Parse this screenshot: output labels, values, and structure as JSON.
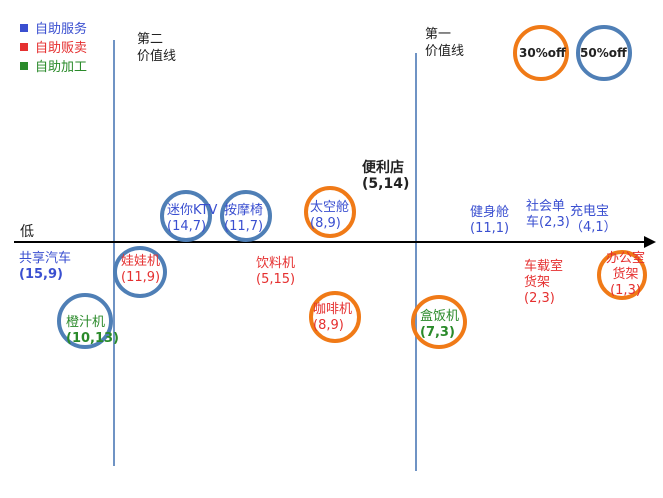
{
  "legend": [
    {
      "label": "自助服务",
      "color": "#3a4fd0"
    },
    {
      "label": "自助贩卖",
      "color": "#e53030"
    },
    {
      "label": "自助加工",
      "color": "#2a8a2a"
    }
  ],
  "value_lines": {
    "second": {
      "line1": "第二",
      "line2": "价值线"
    },
    "first": {
      "line1": "第一",
      "line2": "价值线"
    }
  },
  "axis_low": "低",
  "discounts": [
    "30%off",
    "50%off"
  ],
  "items": {
    "gongxiang_qiche": {
      "name": "共享汽车",
      "value": "(15,9)"
    },
    "chengzhiji": {
      "name": "橙汁机",
      "value": "(10,13)"
    },
    "wawaji": {
      "name": "娃娃机",
      "value": "(11,9)"
    },
    "ktv": {
      "name": "迷你KTV",
      "value": "(14,7)"
    },
    "anmoyi": {
      "name": "按摩椅",
      "value": "(11,7)"
    },
    "yinliaoji": {
      "name": "饮料机",
      "value": "(5,15)"
    },
    "taikongcang": {
      "name": "太空舱",
      "value": "(8,9)"
    },
    "kafeiji": {
      "name": "咖啡机",
      "value": "(8,9)"
    },
    "bianlidian": {
      "name": "便利店",
      "value": "(5,14)"
    },
    "hefanji": {
      "name": "盒饭机",
      "value": "(7,3)"
    },
    "jianshencang": {
      "name": "健身舱",
      "value": "(11,1)"
    },
    "shehui_danche": {
      "name1": "社会单",
      "name2": "车(2,3)"
    },
    "chongdianbao": {
      "name": "充电宝",
      "value": "（4,1）"
    },
    "chezai_huojia": {
      "name1": "车载室",
      "name2": "货架",
      "value": "(2,3)"
    },
    "bangongshi_huojia": {
      "name1": "办公室",
      "name2": "货架",
      "value": "(1,3)"
    }
  }
}
